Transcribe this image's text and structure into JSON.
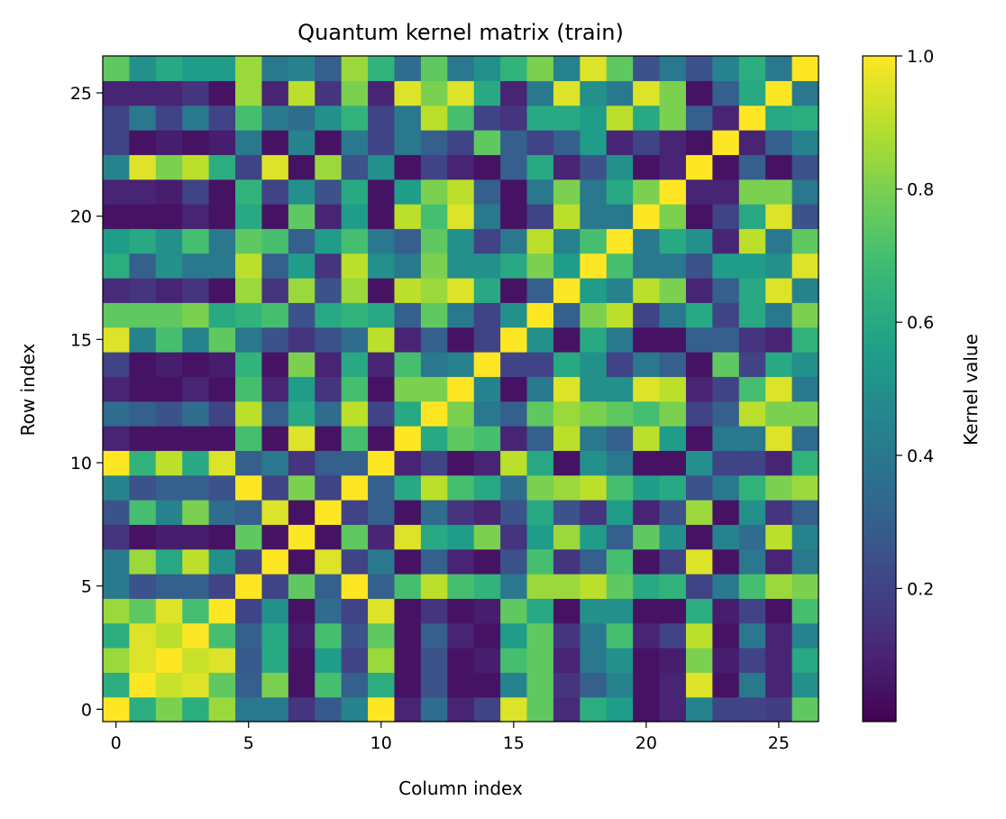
{
  "chart_data": {
    "type": "heatmap",
    "title": "Quantum kernel matrix (train)",
    "xlabel": "Column index",
    "ylabel": "Row index",
    "colorbar_label": "Kernel value",
    "colormap": "viridis",
    "n": 27,
    "x_range": [
      -0.5,
      26.5
    ],
    "y_range": [
      -0.5,
      26.5
    ],
    "x_ticks": [
      0,
      5,
      10,
      15,
      20,
      25
    ],
    "y_ticks": [
      0,
      5,
      10,
      15,
      20,
      25
    ],
    "color_range": [
      0.0,
      1.0
    ],
    "colorbar_ticks": [
      0.2,
      0.4,
      0.6,
      0.8,
      1.0
    ],
    "colorbar_tick_labels": [
      "0.2",
      "0.4",
      "0.6",
      "0.8",
      "1.0"
    ],
    "origin": "lower",
    "grid": false,
    "values": [
      [
        1.0,
        0.62,
        0.8,
        0.62,
        0.85,
        0.4,
        0.4,
        0.15,
        0.28,
        0.45,
        1.0,
        0.1,
        0.35,
        0.1,
        0.2,
        0.95,
        0.75,
        0.12,
        0.62,
        0.55,
        0.05,
        0.1,
        0.45,
        0.2,
        0.2,
        0.18,
        0.75
      ],
      [
        0.62,
        1.0,
        0.92,
        0.95,
        0.75,
        0.3,
        0.8,
        0.05,
        0.7,
        0.3,
        0.62,
        0.05,
        0.25,
        0.05,
        0.05,
        0.45,
        0.75,
        0.15,
        0.3,
        0.45,
        0.05,
        0.1,
        0.95,
        0.05,
        0.4,
        0.1,
        0.5
      ],
      [
        0.85,
        0.95,
        1.0,
        0.92,
        0.95,
        0.28,
        0.6,
        0.05,
        0.55,
        0.2,
        0.85,
        0.05,
        0.25,
        0.05,
        0.08,
        0.7,
        0.75,
        0.1,
        0.4,
        0.5,
        0.05,
        0.08,
        0.8,
        0.08,
        0.2,
        0.1,
        0.6
      ],
      [
        0.62,
        0.95,
        0.9,
        1.0,
        0.7,
        0.3,
        0.6,
        0.08,
        0.7,
        0.25,
        0.75,
        0.05,
        0.3,
        0.1,
        0.05,
        0.55,
        0.75,
        0.15,
        0.4,
        0.7,
        0.1,
        0.2,
        0.9,
        0.05,
        0.4,
        0.1,
        0.45
      ],
      [
        0.85,
        0.75,
        0.95,
        0.7,
        1.0,
        0.2,
        0.5,
        0.05,
        0.35,
        0.2,
        0.95,
        0.05,
        0.15,
        0.05,
        0.08,
        0.75,
        0.6,
        0.05,
        0.5,
        0.5,
        0.05,
        0.05,
        0.62,
        0.08,
        0.2,
        0.05,
        0.7
      ],
      [
        0.4,
        0.25,
        0.3,
        0.3,
        0.2,
        1.0,
        0.2,
        0.75,
        0.3,
        1.0,
        0.3,
        0.7,
        0.9,
        0.7,
        0.65,
        0.4,
        0.85,
        0.85,
        0.9,
        0.75,
        0.6,
        0.65,
        0.2,
        0.4,
        0.7,
        0.85,
        0.8
      ],
      [
        0.4,
        0.85,
        0.6,
        0.9,
        0.5,
        0.2,
        1.0,
        0.05,
        0.95,
        0.2,
        0.4,
        0.05,
        0.3,
        0.1,
        0.05,
        0.25,
        0.7,
        0.15,
        0.3,
        0.7,
        0.05,
        0.2,
        0.95,
        0.05,
        0.4,
        0.1,
        0.4
      ],
      [
        0.15,
        0.05,
        0.08,
        0.08,
        0.05,
        0.75,
        0.05,
        1.0,
        0.05,
        0.75,
        0.1,
        0.95,
        0.6,
        0.55,
        0.8,
        0.15,
        0.55,
        0.85,
        0.55,
        0.3,
        0.75,
        0.5,
        0.05,
        0.45,
        0.35,
        0.9,
        0.45
      ],
      [
        0.25,
        0.7,
        0.45,
        0.8,
        0.35,
        0.3,
        0.95,
        0.05,
        1.0,
        0.2,
        0.3,
        0.05,
        0.35,
        0.15,
        0.1,
        0.25,
        0.6,
        0.25,
        0.15,
        0.55,
        0.1,
        0.25,
        0.85,
        0.05,
        0.5,
        0.15,
        0.3
      ],
      [
        0.45,
        0.25,
        0.3,
        0.3,
        0.25,
        1.0,
        0.2,
        0.8,
        0.2,
        1.0,
        0.3,
        0.6,
        0.9,
        0.7,
        0.6,
        0.35,
        0.8,
        0.85,
        0.9,
        0.7,
        0.55,
        0.6,
        0.25,
        0.4,
        0.65,
        0.8,
        0.85
      ],
      [
        1.0,
        0.65,
        0.9,
        0.6,
        0.95,
        0.3,
        0.4,
        0.15,
        0.3,
        0.3,
        1.0,
        0.1,
        0.2,
        0.05,
        0.1,
        0.9,
        0.6,
        0.05,
        0.5,
        0.4,
        0.05,
        0.05,
        0.5,
        0.2,
        0.2,
        0.1,
        0.65
      ],
      [
        0.1,
        0.05,
        0.05,
        0.05,
        0.05,
        0.7,
        0.05,
        0.95,
        0.05,
        0.7,
        0.05,
        1.0,
        0.6,
        0.75,
        0.7,
        0.1,
        0.3,
        0.9,
        0.4,
        0.3,
        0.9,
        0.55,
        0.05,
        0.4,
        0.4,
        0.95,
        0.35
      ],
      [
        0.35,
        0.3,
        0.25,
        0.35,
        0.2,
        0.9,
        0.3,
        0.6,
        0.35,
        0.9,
        0.2,
        0.6,
        1.0,
        0.8,
        0.4,
        0.3,
        0.75,
        0.85,
        0.8,
        0.75,
        0.7,
        0.8,
        0.2,
        0.3,
        0.9,
        0.8,
        0.8
      ],
      [
        0.1,
        0.05,
        0.05,
        0.1,
        0.05,
        0.7,
        0.1,
        0.55,
        0.15,
        0.7,
        0.05,
        0.8,
        0.8,
        1.0,
        0.45,
        0.05,
        0.4,
        0.95,
        0.5,
        0.5,
        0.95,
        0.9,
        0.1,
        0.2,
        0.7,
        0.95,
        0.4
      ],
      [
        0.2,
        0.05,
        0.08,
        0.05,
        0.08,
        0.65,
        0.05,
        0.8,
        0.1,
        0.6,
        0.1,
        0.7,
        0.4,
        0.45,
        1.0,
        0.2,
        0.2,
        0.6,
        0.5,
        0.2,
        0.4,
        0.3,
        0.05,
        0.75,
        0.2,
        0.6,
        0.5
      ],
      [
        0.95,
        0.45,
        0.7,
        0.45,
        0.75,
        0.4,
        0.25,
        0.15,
        0.25,
        0.35,
        0.9,
        0.1,
        0.3,
        0.05,
        0.2,
        1.0,
        0.5,
        0.05,
        0.6,
        0.4,
        0.05,
        0.05,
        0.3,
        0.3,
        0.15,
        0.1,
        0.65
      ],
      [
        0.75,
        0.75,
        0.75,
        0.8,
        0.6,
        0.65,
        0.7,
        0.25,
        0.6,
        0.65,
        0.6,
        0.3,
        0.75,
        0.4,
        0.2,
        0.5,
        1.0,
        0.3,
        0.8,
        0.9,
        0.2,
        0.4,
        0.6,
        0.2,
        0.6,
        0.4,
        0.8
      ],
      [
        0.12,
        0.15,
        0.1,
        0.15,
        0.05,
        0.85,
        0.15,
        0.85,
        0.25,
        0.85,
        0.05,
        0.9,
        0.85,
        0.95,
        0.6,
        0.05,
        0.3,
        1.0,
        0.55,
        0.45,
        0.9,
        0.8,
        0.1,
        0.3,
        0.6,
        0.95,
        0.45
      ],
      [
        0.62,
        0.3,
        0.5,
        0.4,
        0.4,
        0.9,
        0.3,
        0.55,
        0.15,
        0.9,
        0.5,
        0.4,
        0.8,
        0.5,
        0.5,
        0.6,
        0.8,
        0.55,
        1.0,
        0.7,
        0.4,
        0.4,
        0.25,
        0.55,
        0.55,
        0.5,
        0.95
      ],
      [
        0.55,
        0.6,
        0.5,
        0.7,
        0.4,
        0.75,
        0.7,
        0.3,
        0.55,
        0.7,
        0.4,
        0.3,
        0.75,
        0.5,
        0.2,
        0.4,
        0.9,
        0.45,
        0.7,
        1.0,
        0.4,
        0.6,
        0.5,
        0.1,
        0.9,
        0.4,
        0.75
      ],
      [
        0.05,
        0.05,
        0.05,
        0.1,
        0.05,
        0.6,
        0.05,
        0.75,
        0.1,
        0.55,
        0.05,
        0.9,
        0.7,
        0.95,
        0.4,
        0.05,
        0.2,
        0.9,
        0.4,
        0.4,
        1.0,
        0.8,
        0.05,
        0.2,
        0.6,
        0.95,
        0.25
      ],
      [
        0.1,
        0.1,
        0.08,
        0.2,
        0.05,
        0.65,
        0.2,
        0.5,
        0.25,
        0.6,
        0.05,
        0.55,
        0.8,
        0.9,
        0.3,
        0.05,
        0.4,
        0.8,
        0.4,
        0.6,
        0.8,
        1.0,
        0.1,
        0.1,
        0.8,
        0.8,
        0.4
      ],
      [
        0.45,
        0.95,
        0.8,
        0.9,
        0.62,
        0.2,
        0.95,
        0.05,
        0.85,
        0.25,
        0.5,
        0.05,
        0.2,
        0.1,
        0.05,
        0.3,
        0.6,
        0.1,
        0.25,
        0.5,
        0.05,
        0.1,
        1.0,
        0.05,
        0.3,
        0.05,
        0.25
      ],
      [
        0.2,
        0.05,
        0.08,
        0.05,
        0.08,
        0.4,
        0.05,
        0.45,
        0.05,
        0.4,
        0.2,
        0.4,
        0.3,
        0.2,
        0.75,
        0.3,
        0.2,
        0.3,
        0.55,
        0.1,
        0.2,
        0.1,
        0.05,
        1.0,
        0.1,
        0.3,
        0.45
      ],
      [
        0.2,
        0.4,
        0.2,
        0.4,
        0.2,
        0.7,
        0.4,
        0.35,
        0.5,
        0.65,
        0.2,
        0.4,
        0.9,
        0.7,
        0.2,
        0.15,
        0.6,
        0.6,
        0.55,
        0.9,
        0.6,
        0.8,
        0.3,
        0.1,
        1.0,
        0.6,
        0.62
      ],
      [
        0.1,
        0.1,
        0.1,
        0.15,
        0.05,
        0.85,
        0.1,
        0.9,
        0.15,
        0.8,
        0.1,
        0.95,
        0.8,
        0.95,
        0.6,
        0.1,
        0.4,
        0.95,
        0.5,
        0.4,
        0.95,
        0.8,
        0.05,
        0.3,
        0.6,
        1.0,
        0.4
      ],
      [
        0.75,
        0.5,
        0.6,
        0.55,
        0.55,
        0.85,
        0.4,
        0.45,
        0.3,
        0.85,
        0.65,
        0.35,
        0.75,
        0.4,
        0.5,
        0.65,
        0.8,
        0.45,
        0.95,
        0.75,
        0.25,
        0.4,
        0.25,
        0.45,
        0.62,
        0.4,
        1.0
      ]
    ]
  }
}
